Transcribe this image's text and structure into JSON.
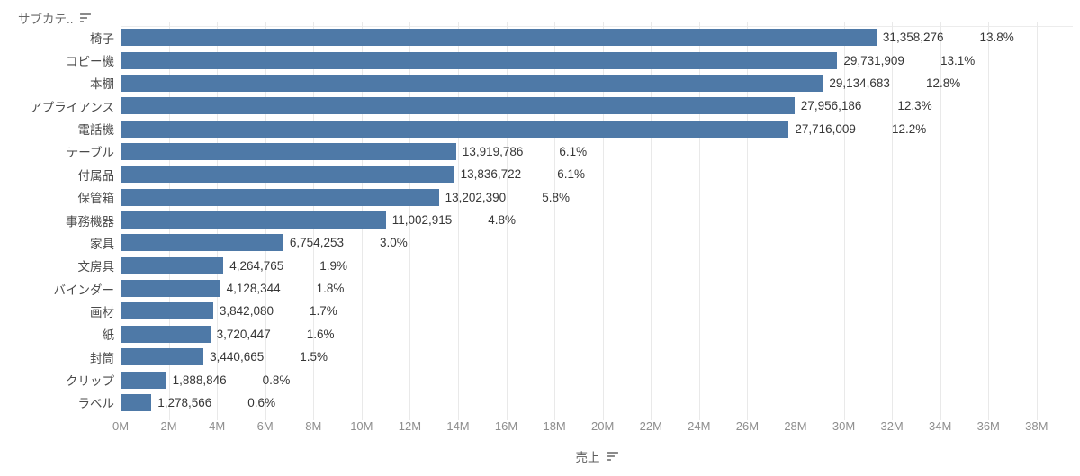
{
  "header": {
    "title": "サブカテ..",
    "sort_icon": "sort-descending-icon"
  },
  "colors": {
    "bar": "#4e79a7",
    "grid": "#e9e9e9"
  },
  "chart_data": {
    "type": "bar",
    "orientation": "horizontal",
    "xlabel": "売上",
    "column_header": "サブカテ..",
    "grid": true,
    "sorted": "descending",
    "axis": {
      "min": 0,
      "max": 39500000,
      "tick_interval": 2000000,
      "tick_labels": [
        "0M",
        "2M",
        "4M",
        "6M",
        "8M",
        "10M",
        "12M",
        "14M",
        "16M",
        "18M",
        "20M",
        "22M",
        "24M",
        "26M",
        "28M",
        "30M",
        "32M",
        "34M",
        "36M",
        "38M"
      ]
    },
    "rows": [
      {
        "category": "椅子",
        "value": 31358276,
        "value_label": "31,358,276",
        "pct_label": "13.8%"
      },
      {
        "category": "コピー機",
        "value": 29731909,
        "value_label": "29,731,909",
        "pct_label": "13.1%"
      },
      {
        "category": "本棚",
        "value": 29134683,
        "value_label": "29,134,683",
        "pct_label": "12.8%"
      },
      {
        "category": "アプライアンス",
        "value": 27956186,
        "value_label": "27,956,186",
        "pct_label": "12.3%"
      },
      {
        "category": "電話機",
        "value": 27716009,
        "value_label": "27,716,009",
        "pct_label": "12.2%"
      },
      {
        "category": "テーブル",
        "value": 13919786,
        "value_label": "13,919,786",
        "pct_label": "6.1%"
      },
      {
        "category": "付属品",
        "value": 13836722,
        "value_label": "13,836,722",
        "pct_label": "6.1%"
      },
      {
        "category": "保管箱",
        "value": 13202390,
        "value_label": "13,202,390",
        "pct_label": "5.8%"
      },
      {
        "category": "事務機器",
        "value": 11002915,
        "value_label": "11,002,915",
        "pct_label": "4.8%"
      },
      {
        "category": "家具",
        "value": 6754253,
        "value_label": "6,754,253",
        "pct_label": "3.0%"
      },
      {
        "category": "文房具",
        "value": 4264765,
        "value_label": "4,264,765",
        "pct_label": "1.9%"
      },
      {
        "category": "バインダー",
        "value": 4128344,
        "value_label": "4,128,344",
        "pct_label": "1.8%"
      },
      {
        "category": "画材",
        "value": 3842080,
        "value_label": "3,842,080",
        "pct_label": "1.7%"
      },
      {
        "category": "紙",
        "value": 3720447,
        "value_label": "3,720,447",
        "pct_label": "1.6%"
      },
      {
        "category": "封筒",
        "value": 3440665,
        "value_label": "3,440,665",
        "pct_label": "1.5%"
      },
      {
        "category": "クリップ",
        "value": 1888846,
        "value_label": "1,888,846",
        "pct_label": "0.8%"
      },
      {
        "category": "ラベル",
        "value": 1278566,
        "value_label": "1,278,566",
        "pct_label": "0.6%"
      }
    ]
  }
}
